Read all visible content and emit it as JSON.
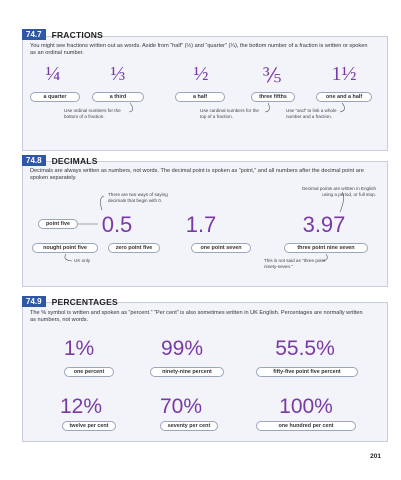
{
  "page_number": "201",
  "sections": {
    "fractions": {
      "number": "74.7",
      "title": "FRACTIONS",
      "intro": "You might see fractions written out as words. Aside from “half” (½) and “quarter” (¼), the bottom number of a fraction is written or spoken as an ordinal number.",
      "items": [
        {
          "symbol": "¼",
          "label": "a quarter"
        },
        {
          "symbol": "⅓",
          "label": "a third"
        },
        {
          "symbol": "½",
          "label": "a half"
        },
        {
          "symbol": "⅗",
          "label": "three fifths"
        },
        {
          "symbol": "1½",
          "label": "one and a half"
        }
      ],
      "notes": {
        "ordinal": "Use ordinal numbers for the bottom of a fraction.",
        "cardinal": "Use cardinal numbers for the top of a fraction.",
        "and": "Use “and” to link a whole number and a fraction."
      }
    },
    "decimals": {
      "number": "74.8",
      "title": "DECIMALS",
      "intro": "Decimals are always written as numbers, not words. The decimal point is spoken as “point,” and all numbers after the decimal point are spoken separately.",
      "items": [
        {
          "symbol": "0.5",
          "labels": [
            "nought point five",
            "zero point five"
          ]
        },
        {
          "symbol": "1.7",
          "labels": [
            "one point seven"
          ]
        },
        {
          "symbol": "3.97",
          "labels": [
            "three point nine seven"
          ]
        }
      ],
      "point_label": "point five",
      "notes": {
        "two_ways": "There are two ways of saying decimals that begin with 0.",
        "uk_only": "UK only",
        "english_period": "Decimal points are written in English using a period, or full stop.",
        "not_ninety": "This is not said as “three point ninety-seven.”"
      }
    },
    "percentages": {
      "number": "74.9",
      "title": "PERCENTAGES",
      "intro": "The % symbol is written and spoken as “percent.” “Per cent” is also sometimes written in UK English. Percentages are normally written as numbers, not words.",
      "items": [
        {
          "symbol": "1%",
          "label": "one percent"
        },
        {
          "symbol": "99%",
          "label": "ninety-nine percent"
        },
        {
          "symbol": "55.5%",
          "label": "fifty-five point five percent"
        },
        {
          "symbol": "12%",
          "label": "twelve per cent"
        },
        {
          "symbol": "70%",
          "label": "seventy per cent"
        },
        {
          "symbol": "100%",
          "label": "one hundred per cent"
        }
      ]
    }
  },
  "colors": {
    "accent": "#2e58a6",
    "number": "#7a3aa6",
    "panel": "#f2f4f9",
    "border": "#c7cdd9"
  }
}
